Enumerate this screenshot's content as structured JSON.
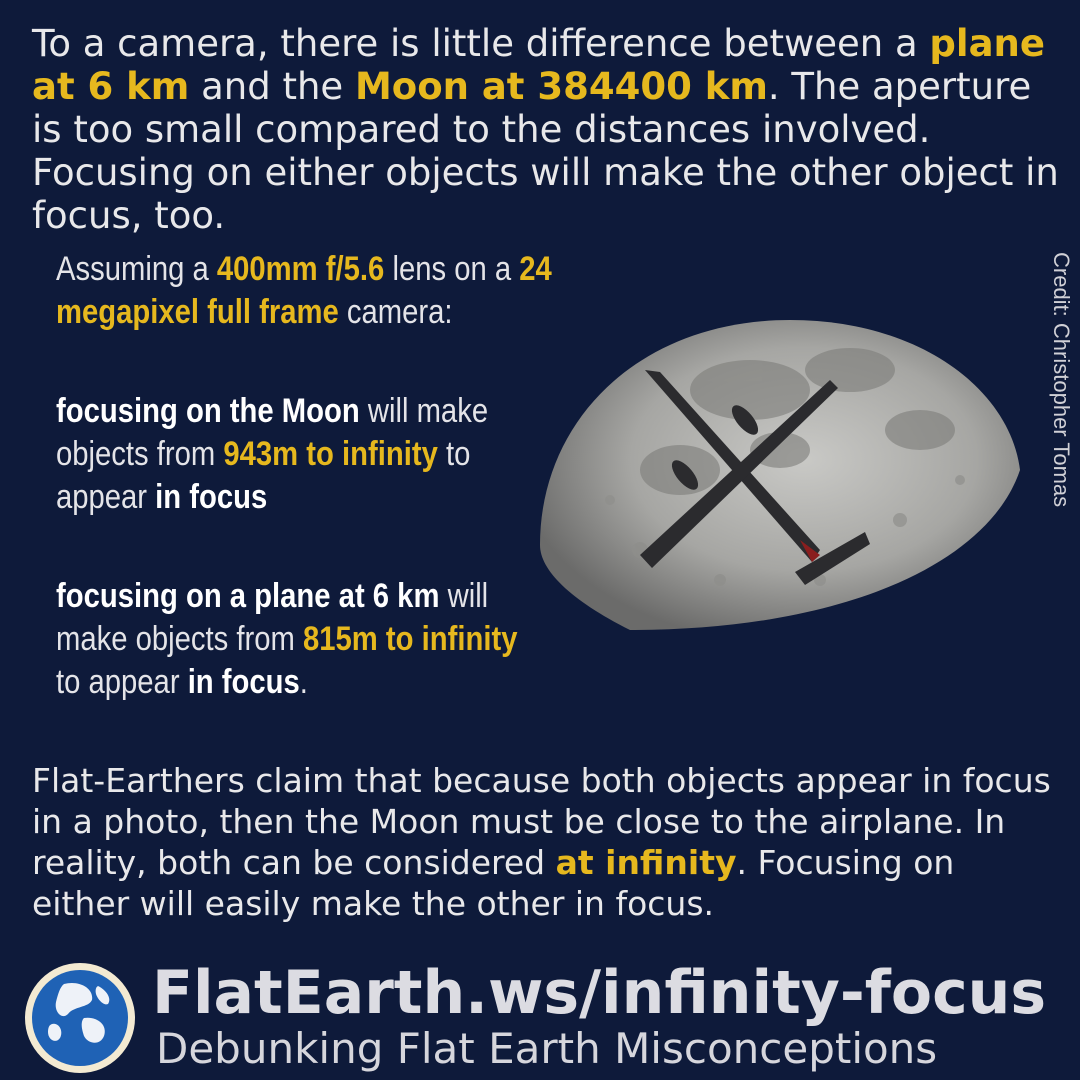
{
  "intro": {
    "p1": "To a camera, there is little difference between a ",
    "h1": "plane at 6 km",
    "p2": " and the ",
    "h2": "Moon at 384400 km",
    "p3": ". The aperture is too small compared to the distances involved. Focusing on either objects will make the other object in focus, too."
  },
  "assumption": {
    "p1": "Assuming a ",
    "h1": "400mm f/5.6",
    "p2": " lens on a ",
    "h2": "24 megapixel full frame",
    "p3": " camera:"
  },
  "moon_focus": {
    "b1": "focusing on the Moon",
    "p1": " will make objects from ",
    "h1": "943m to infinity",
    "p2": " to appear ",
    "b2": "in focus"
  },
  "plane_focus": {
    "b1": "focusing on a plane at 6 km",
    "p1": " will make objects from ",
    "h1": "815m to infinity",
    "p2": " to appear ",
    "b2": "in focus",
    "p3": "."
  },
  "credit": "Credit: Christopher Tomas",
  "outro": {
    "p1": "Flat-Earthers claim that because both objects appear in focus in a photo, then the Moon must be close to the airplane. In reality, both can be considered ",
    "h1": "at infinity",
    "p2": ". Focusing on either will easily make the other in focus."
  },
  "footer": {
    "url": "FlatEarth.ws/infinity-focus",
    "tagline": "Debunking Flat Earth Misconceptions"
  },
  "colors": {
    "background": "#0e1a3a",
    "highlight": "#e6b81e",
    "text": "#e8e8ea"
  }
}
